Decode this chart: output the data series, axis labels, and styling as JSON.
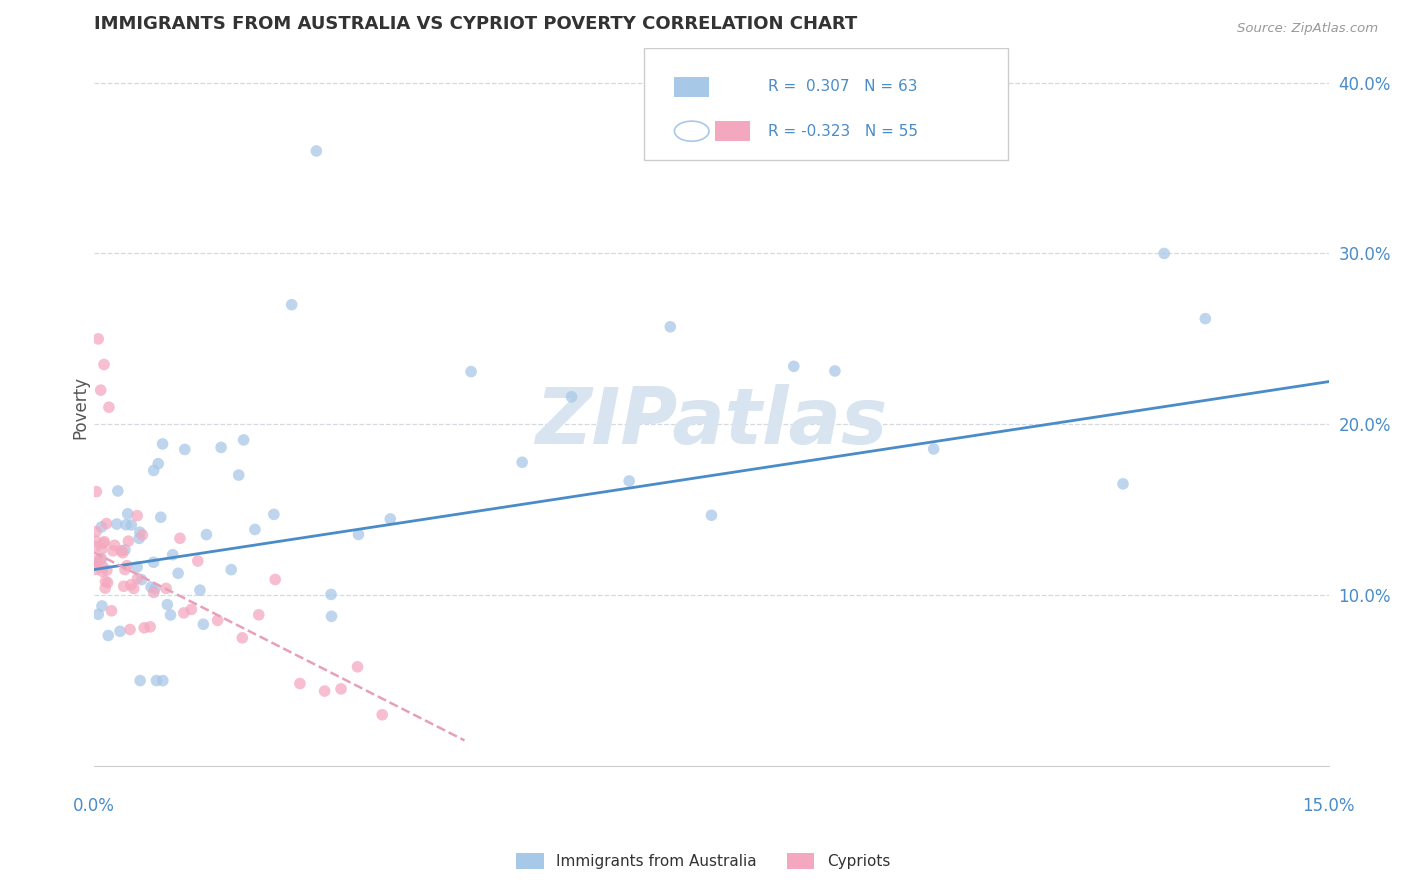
{
  "title": "IMMIGRANTS FROM AUSTRALIA VS CYPRIOT POVERTY CORRELATION CHART",
  "source_text": "Source: ZipAtlas.com",
  "ylabel": "Poverty",
  "xlim": [
    0.0,
    15.0
  ],
  "ylim": [
    0.0,
    42.0
  ],
  "yticks": [
    10.0,
    20.0,
    30.0,
    40.0
  ],
  "ytick_labels": [
    "10.0%",
    "20.0%",
    "30.0%",
    "40.0%"
  ],
  "blue_R": 0.307,
  "blue_N": 63,
  "pink_R": -0.323,
  "pink_N": 55,
  "blue_scatter_color": "#a8c8e8",
  "pink_scatter_color": "#f4a8c0",
  "blue_line_color": "#4a8cc8",
  "pink_line_color": "#e8a0b8",
  "watermark_color": "#d8e4f0",
  "background_color": "#ffffff",
  "grid_color": "#c8d0d8",
  "blue_trend_x0": 0.0,
  "blue_trend_y0": 11.5,
  "blue_trend_x1": 15.0,
  "blue_trend_y1": 22.5,
  "pink_trend_x0": 0.0,
  "pink_trend_y0": 12.5,
  "pink_trend_x1": 4.5,
  "pink_trend_y1": 1.5,
  "legend_R_color": "#4a8cc8",
  "legend_N_color": "#4a8cc8",
  "title_color": "#333333",
  "source_color": "#999999",
  "ylabel_color": "#555555",
  "ytick_color": "#4a8cc8",
  "xlabel_color": "#4a8cc8"
}
